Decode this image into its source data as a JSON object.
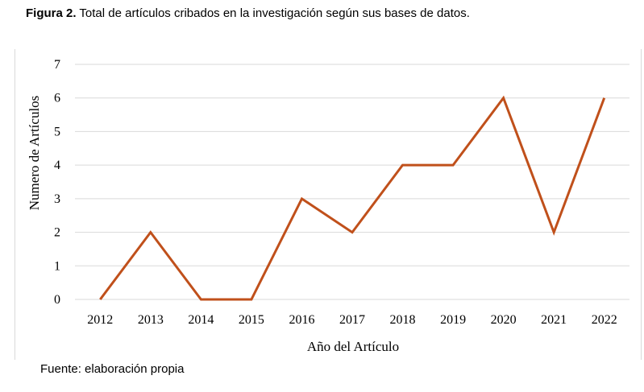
{
  "caption": {
    "lead": "Figura 2.",
    "text": " Total de artículos cribados en la investigación según sus bases de datos."
  },
  "source": "Fuente: elaboración propia",
  "chart_data": {
    "type": "line",
    "title": "",
    "xlabel": "Año del Artículo",
    "ylabel": "Numero de Artículos",
    "x": [
      "2012",
      "2013",
      "2014",
      "2015",
      "2016",
      "2017",
      "2018",
      "2019",
      "2020",
      "2021",
      "2022"
    ],
    "series": [
      {
        "name": "",
        "values": [
          0,
          2,
          0,
          0,
          3,
          2,
          4,
          4,
          6,
          2,
          6
        ],
        "color": "#C0501B"
      }
    ],
    "ylim": [
      0,
      7
    ],
    "yticks": [
      0,
      1,
      2,
      3,
      4,
      5,
      6,
      7
    ],
    "grid": true,
    "gridColor": "#d9d9d9",
    "legend": "none"
  }
}
